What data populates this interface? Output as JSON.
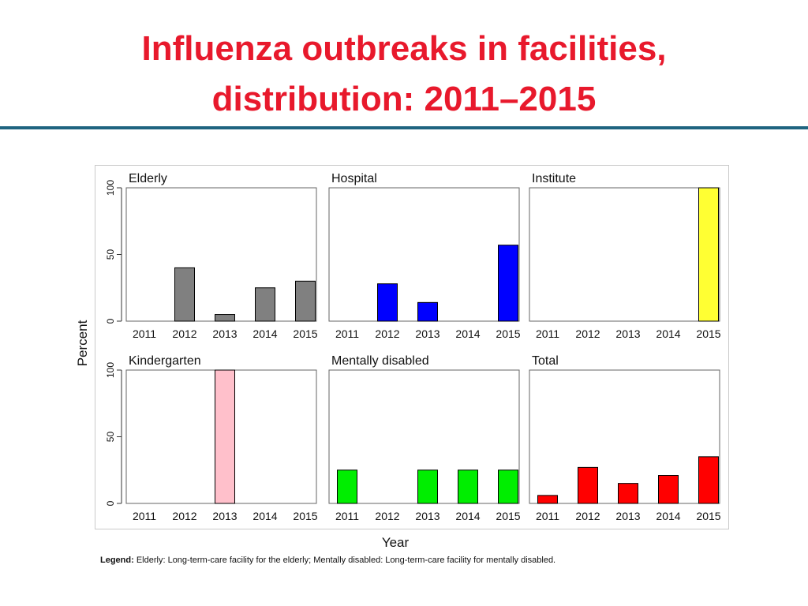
{
  "slide": {
    "title_line1": "Influenza outbreaks in facilities,",
    "title_line2": "distribution: 2011–2015",
    "legend_label": "Legend:",
    "legend_text": " Elderly: Long-term-care facility for the elderly; Mentally disabled: Long-term-care facility for mentally disabled."
  },
  "colors": {
    "title": "#e8192c",
    "rule": "#1f6480"
  },
  "chart_data": {
    "type": "bar",
    "ylabel": "Percent",
    "xlabel": "Year",
    "ylim": [
      0,
      100
    ],
    "y_ticks": [
      0,
      50,
      100
    ],
    "categories": [
      "2011",
      "2012",
      "2013",
      "2014",
      "2015"
    ],
    "grid": false,
    "panels": [
      {
        "name": "Elderly",
        "color": "#808080",
        "values": [
          0,
          40,
          5,
          25,
          30
        ]
      },
      {
        "name": "Hospital",
        "color": "#0000ff",
        "values": [
          0,
          28,
          14,
          0,
          57
        ]
      },
      {
        "name": "Institute",
        "color": "#ffff33",
        "values": [
          0,
          0,
          0,
          0,
          100
        ]
      },
      {
        "name": "Kindergarten",
        "color": "#ffc0cb",
        "values": [
          0,
          0,
          100,
          0,
          0
        ]
      },
      {
        "name": "Mentally disabled",
        "color": "#00ee00",
        "values": [
          25,
          0,
          25,
          25,
          25
        ]
      },
      {
        "name": "Total",
        "color": "#ff0000",
        "values": [
          6,
          27,
          15,
          21,
          35
        ]
      }
    ]
  }
}
